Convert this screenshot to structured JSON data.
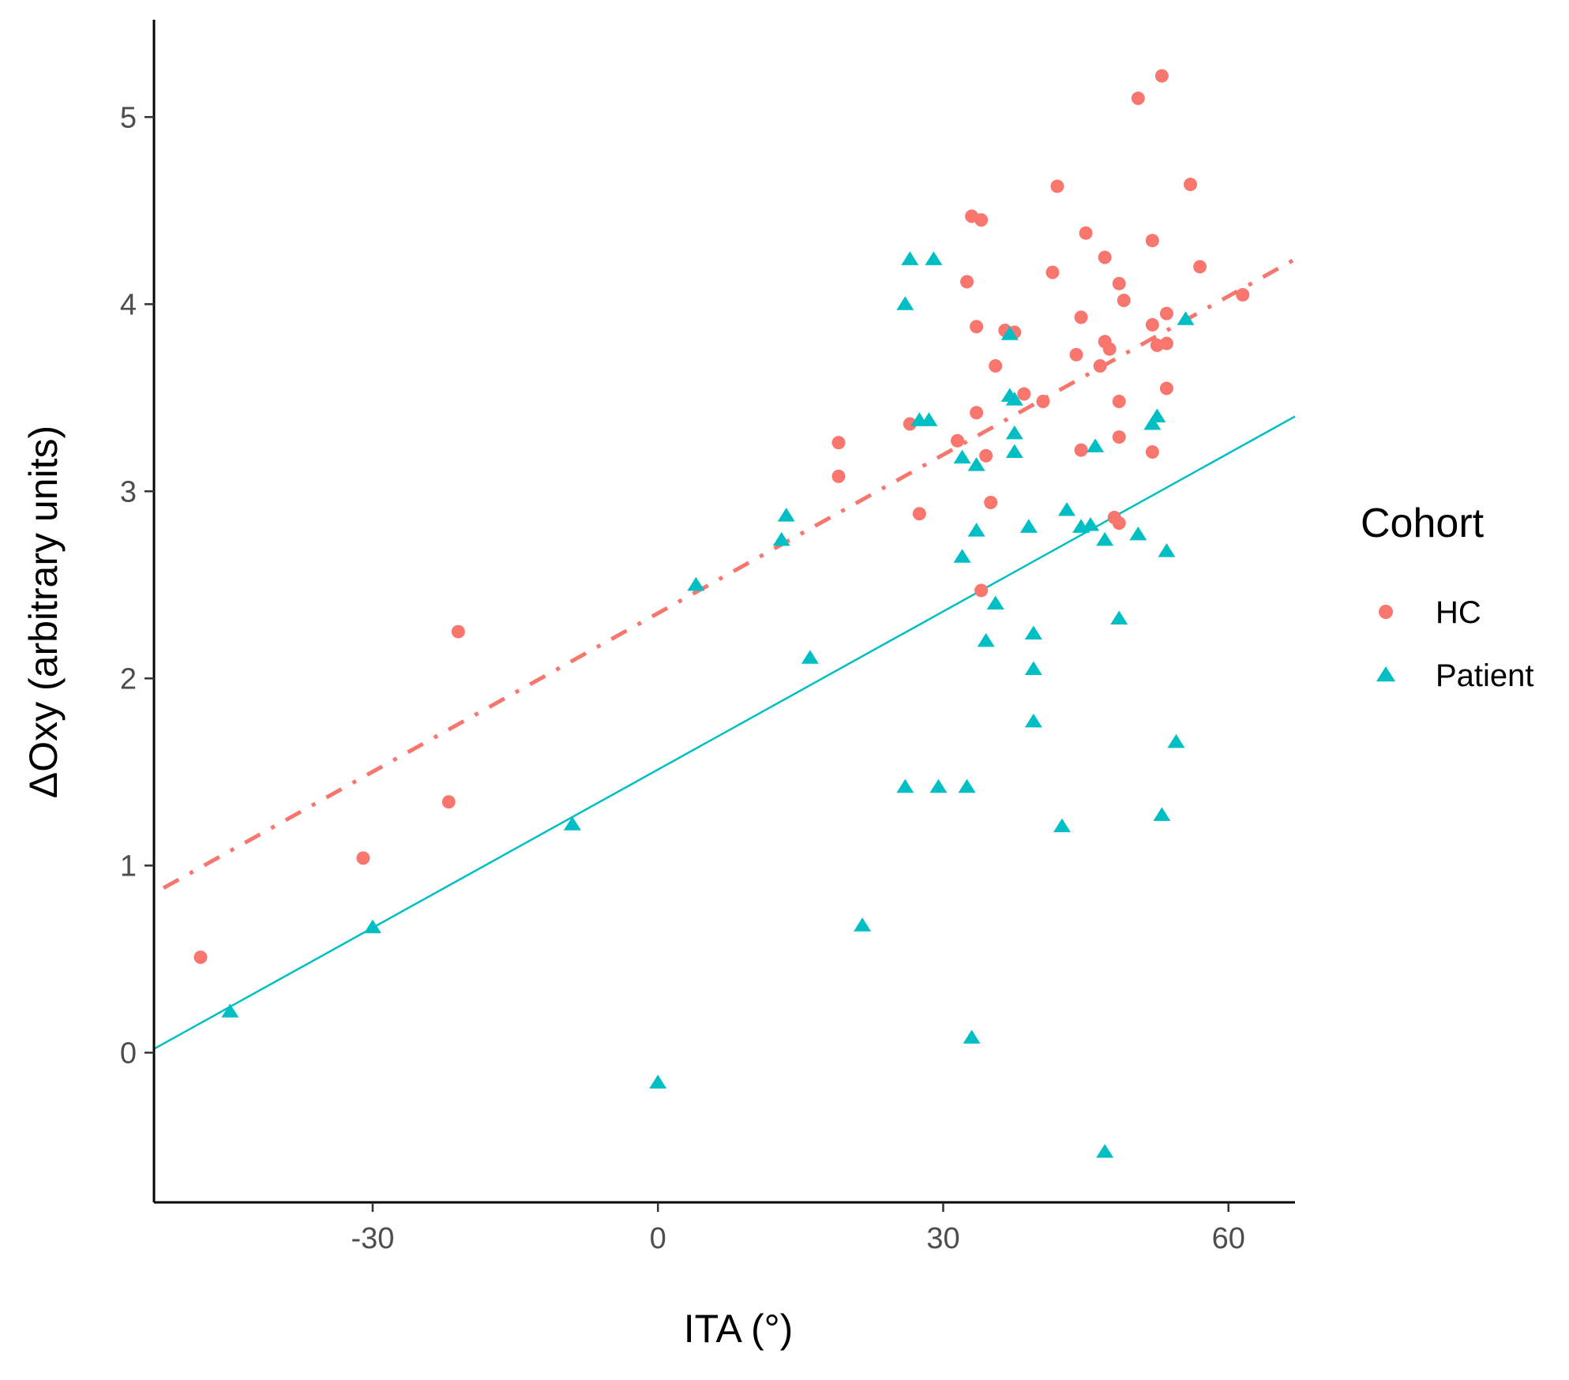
{
  "chart_data": {
    "type": "scatter",
    "xlabel": "ITA (°)",
    "ylabel": "ΔOxy (arbitrary units)",
    "xlim": [
      -53,
      67
    ],
    "ylim": [
      -0.8,
      5.52
    ],
    "x_ticks": [
      -30,
      0,
      30,
      60
    ],
    "y_ticks": [
      0,
      1,
      2,
      3,
      4,
      5
    ],
    "grid": false,
    "legend": {
      "title": "Cohort",
      "position": "right",
      "entries": [
        {
          "label": "HC",
          "marker": "circle",
          "color": "#F8766D"
        },
        {
          "label": "Patient",
          "marker": "triangle",
          "color": "#00BFC4"
        }
      ]
    },
    "series": [
      {
        "name": "HC",
        "marker": "circle",
        "color": "#F8766D",
        "points": [
          [
            -48.1,
            0.51
          ],
          [
            -31.0,
            1.04
          ],
          [
            -22.0,
            1.34
          ],
          [
            -21.0,
            2.25
          ],
          [
            19.0,
            3.26
          ],
          [
            19.0,
            3.08
          ],
          [
            26.5,
            3.36
          ],
          [
            27.5,
            2.88
          ],
          [
            31.5,
            3.27
          ],
          [
            32.5,
            4.12
          ],
          [
            33.0,
            4.47
          ],
          [
            33.5,
            3.88
          ],
          [
            33.5,
            3.42
          ],
          [
            34.0,
            4.45
          ],
          [
            34.5,
            3.19
          ],
          [
            35.0,
            2.94
          ],
          [
            34.0,
            2.47
          ],
          [
            35.5,
            3.67
          ],
          [
            36.5,
            3.86
          ],
          [
            37.5,
            3.85
          ],
          [
            38.5,
            3.52
          ],
          [
            40.5,
            3.48
          ],
          [
            41.5,
            4.17
          ],
          [
            42.0,
            4.63
          ],
          [
            44.0,
            3.73
          ],
          [
            44.5,
            3.93
          ],
          [
            45.0,
            4.38
          ],
          [
            44.5,
            3.22
          ],
          [
            46.5,
            3.67
          ],
          [
            47.0,
            3.8
          ],
          [
            47.0,
            4.25
          ],
          [
            47.5,
            3.76
          ],
          [
            48.0,
            2.86
          ],
          [
            48.5,
            2.83
          ],
          [
            48.5,
            3.48
          ],
          [
            48.5,
            3.29
          ],
          [
            48.5,
            4.11
          ],
          [
            49.0,
            4.02
          ],
          [
            50.5,
            5.1
          ],
          [
            52.0,
            4.34
          ],
          [
            52.0,
            3.89
          ],
          [
            52.0,
            3.21
          ],
          [
            52.5,
            3.78
          ],
          [
            53.0,
            5.22
          ],
          [
            53.5,
            3.95
          ],
          [
            53.5,
            3.79
          ],
          [
            53.5,
            3.55
          ],
          [
            56.0,
            4.64
          ],
          [
            57.0,
            4.2
          ],
          [
            61.5,
            4.05
          ]
        ]
      },
      {
        "name": "Patient",
        "marker": "triangle",
        "color": "#00BFC4",
        "points": [
          [
            -45.0,
            0.22
          ],
          [
            -30.0,
            0.67
          ],
          [
            -9.0,
            1.22
          ],
          [
            0.0,
            -0.16
          ],
          [
            4.0,
            2.5
          ],
          [
            13.0,
            2.74
          ],
          [
            13.5,
            2.87
          ],
          [
            16.0,
            2.11
          ],
          [
            21.5,
            0.68
          ],
          [
            26.0,
            4.0
          ],
          [
            26.5,
            4.24
          ],
          [
            26.0,
            1.42
          ],
          [
            27.5,
            3.38
          ],
          [
            28.5,
            3.38
          ],
          [
            29.0,
            4.24
          ],
          [
            29.5,
            1.42
          ],
          [
            32.0,
            2.65
          ],
          [
            32.0,
            3.18
          ],
          [
            32.5,
            1.42
          ],
          [
            33.0,
            0.08
          ],
          [
            33.5,
            3.14
          ],
          [
            33.5,
            2.79
          ],
          [
            34.5,
            2.2
          ],
          [
            35.5,
            2.4
          ],
          [
            37.0,
            3.51
          ],
          [
            37.0,
            3.84
          ],
          [
            37.5,
            3.49
          ],
          [
            37.5,
            3.31
          ],
          [
            37.5,
            3.21
          ],
          [
            39.0,
            2.81
          ],
          [
            39.5,
            2.24
          ],
          [
            39.5,
            2.05
          ],
          [
            39.5,
            1.77
          ],
          [
            42.5,
            1.21
          ],
          [
            43.0,
            2.9
          ],
          [
            44.5,
            2.81
          ],
          [
            45.5,
            2.82
          ],
          [
            46.0,
            3.24
          ],
          [
            47.0,
            2.74
          ],
          [
            47.0,
            -0.53
          ],
          [
            48.5,
            2.32
          ],
          [
            50.5,
            2.77
          ],
          [
            52.0,
            3.36
          ],
          [
            52.5,
            3.4
          ],
          [
            53.0,
            1.27
          ],
          [
            53.5,
            2.68
          ],
          [
            54.5,
            1.66
          ],
          [
            55.5,
            3.92
          ]
        ]
      }
    ],
    "fit_lines": [
      {
        "series": "HC",
        "color": "#F8766D",
        "dash": "dash-dot",
        "x": [
          -52,
          67
        ],
        "y": [
          0.88,
          4.24
        ]
      },
      {
        "series": "Patient",
        "color": "#00BFC4",
        "dash": "solid",
        "x": [
          -53,
          67
        ],
        "y": [
          0.02,
          3.4
        ]
      }
    ]
  }
}
